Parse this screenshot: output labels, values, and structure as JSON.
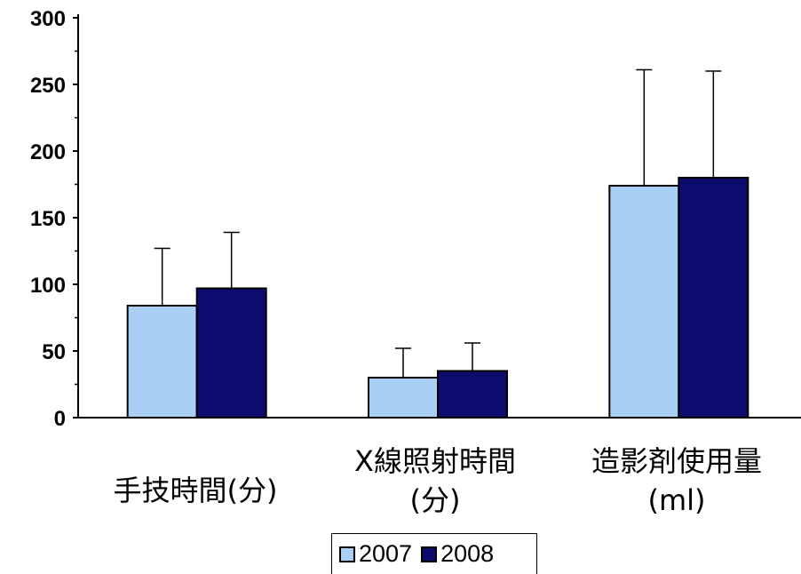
{
  "chart_data": {
    "type": "bar",
    "categories": [
      [
        "手技時間(分)"
      ],
      [
        "X線照射時間",
        "(分)"
      ],
      [
        "造影剤使用量",
        "(ml)"
      ]
    ],
    "series": [
      {
        "name": "2007",
        "color": "#A9CFF5",
        "values": [
          84,
          30,
          174
        ],
        "error_upper": [
          127,
          52,
          261
        ]
      },
      {
        "name": "2008",
        "color": "#0C0C6E",
        "values": [
          97,
          35,
          180
        ],
        "error_upper": [
          139,
          56,
          260
        ]
      }
    ],
    "ylim": [
      0,
      300
    ],
    "yticks": [
      "0",
      "50",
      "100",
      "150",
      "200",
      "250",
      "300"
    ],
    "grid": false,
    "legend_position": "bottom-center"
  }
}
